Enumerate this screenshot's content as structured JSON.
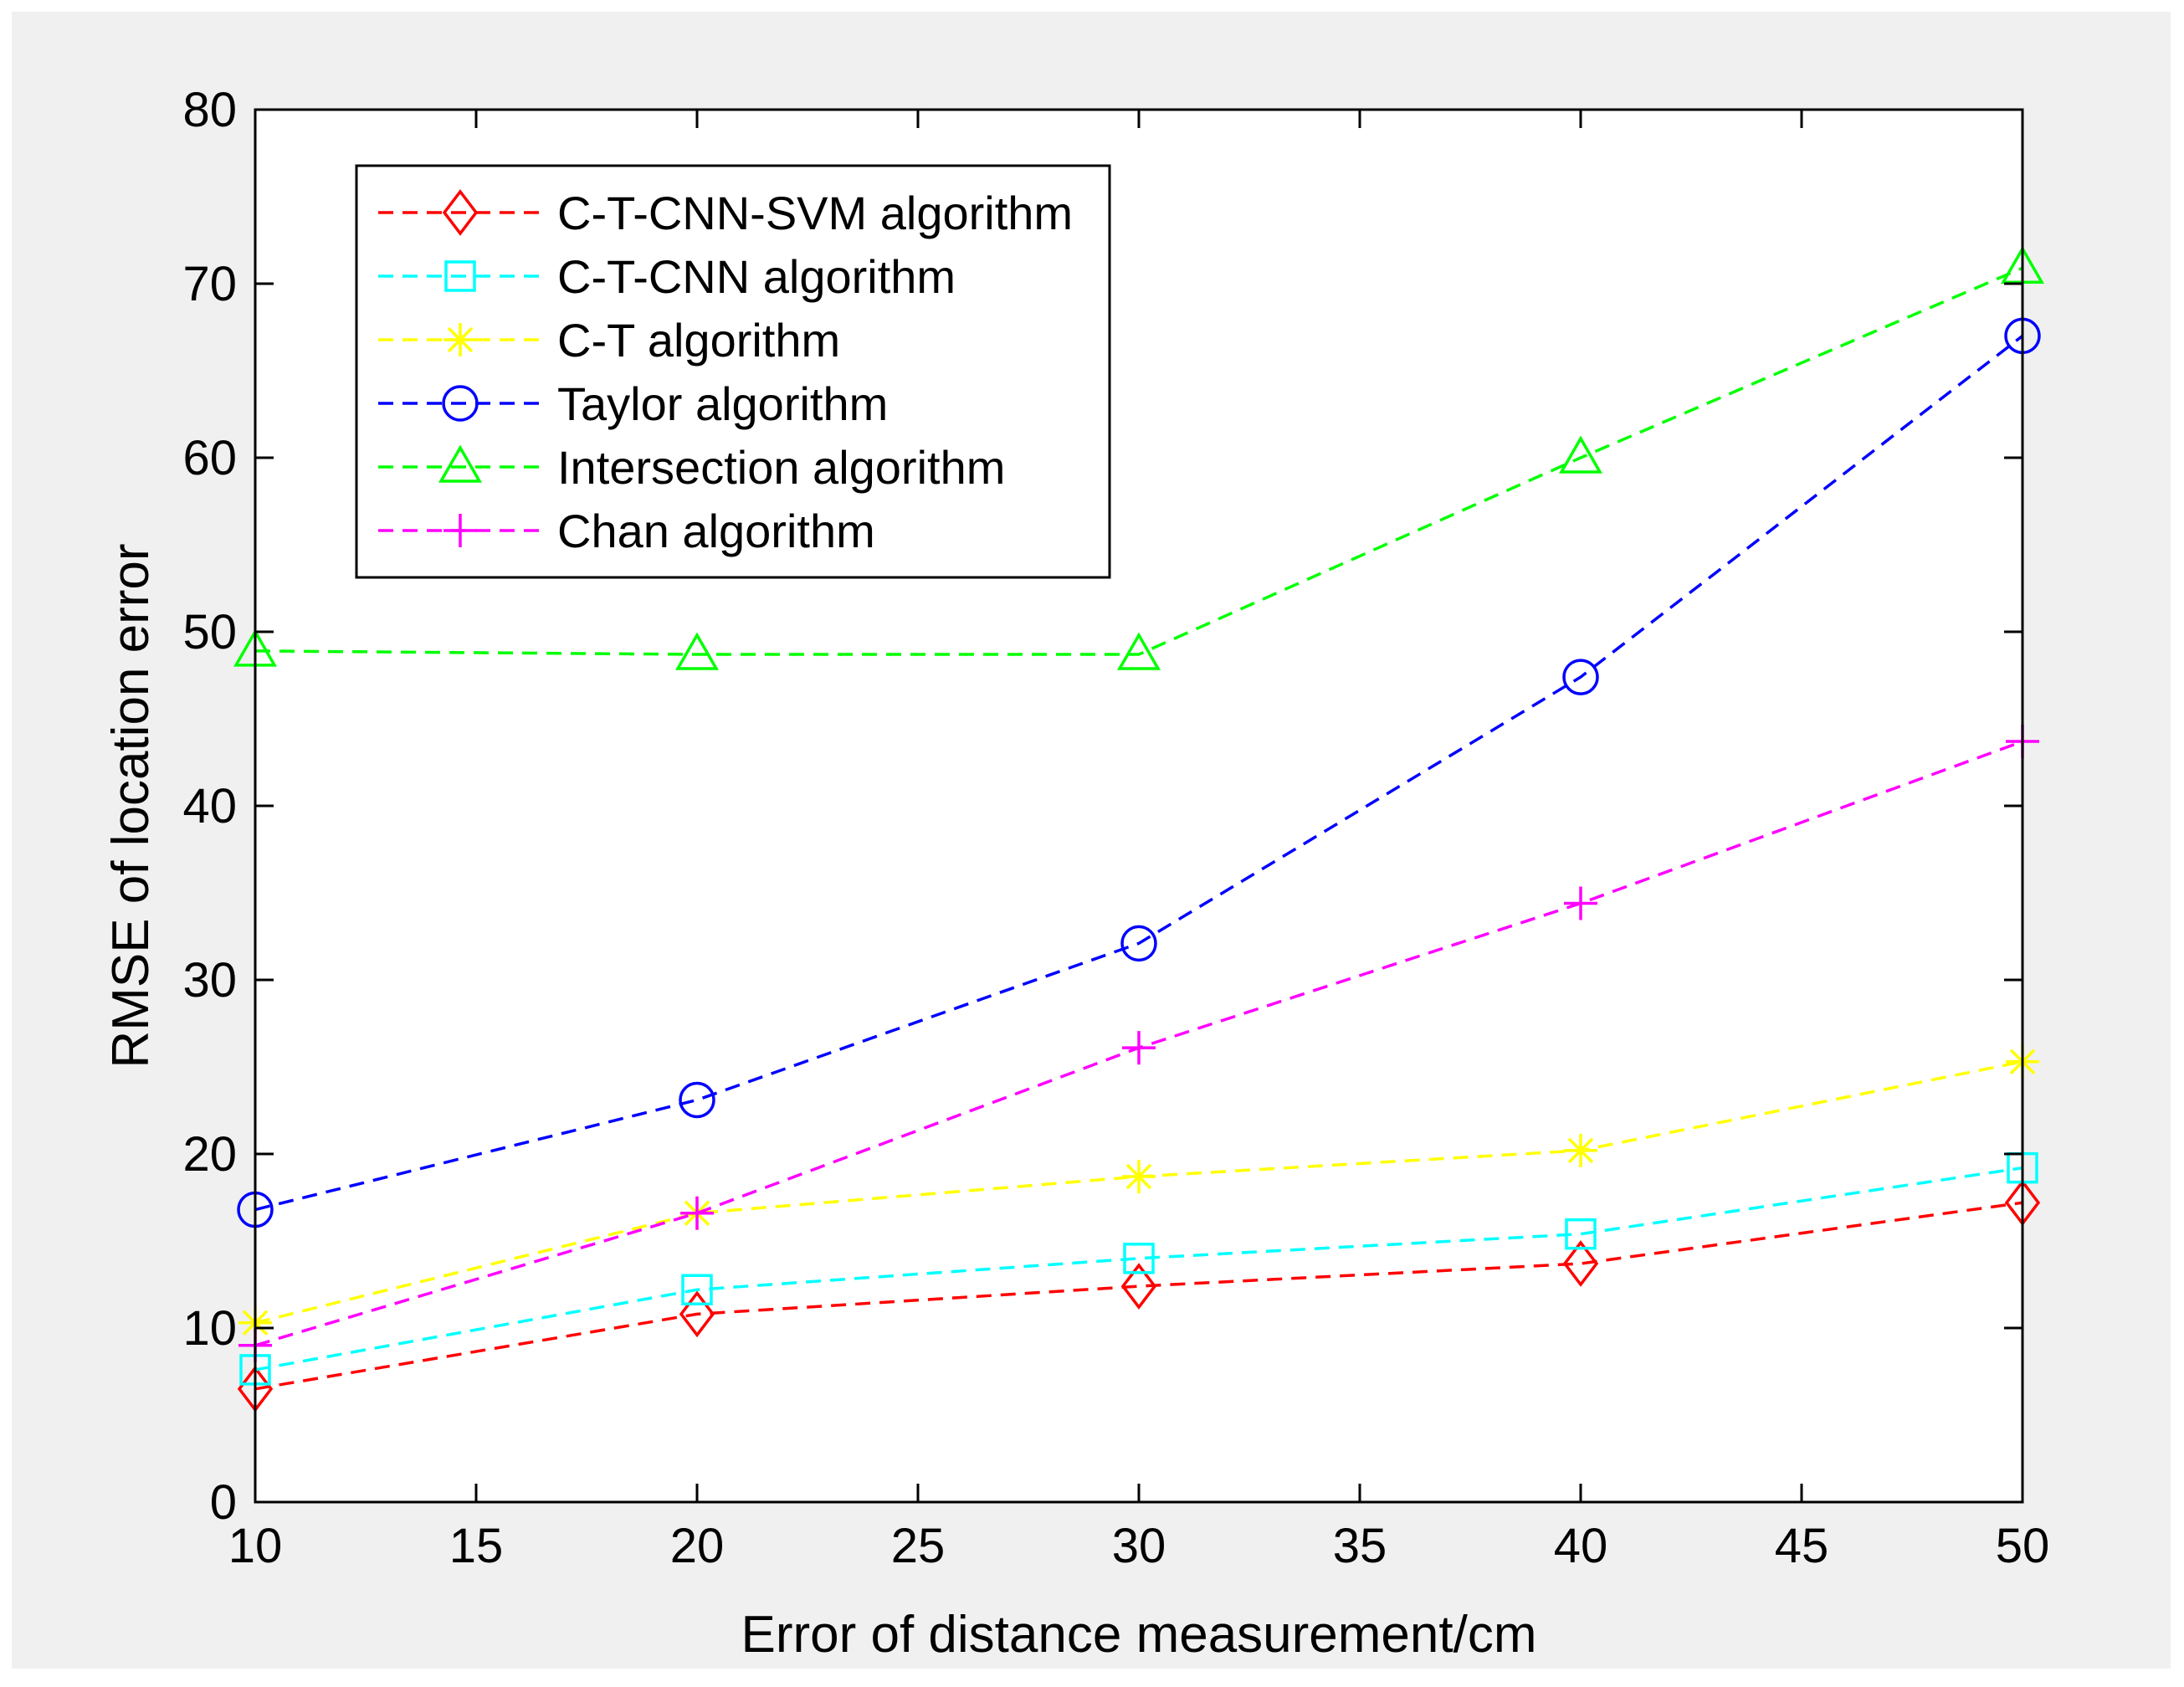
{
  "chart_data": {
    "type": "line",
    "title": "",
    "xlabel": "Error of distance measurement/cm",
    "ylabel": "RMSE of location error",
    "xlim": [
      10,
      50
    ],
    "ylim": [
      0,
      80
    ],
    "xticks": [
      10,
      15,
      20,
      25,
      30,
      35,
      40,
      45,
      50
    ],
    "yticks": [
      0,
      10,
      20,
      30,
      40,
      50,
      60,
      70,
      80
    ],
    "grid": false,
    "legend_position": "top-left",
    "x": [
      10,
      20,
      30,
      40,
      50
    ],
    "series": [
      {
        "name": "C-T-CNN-SVM algorithm",
        "color": "#ff0000",
        "marker": "diamond",
        "values": [
          6.5,
          10.8,
          12.4,
          13.7,
          17.2
        ]
      },
      {
        "name": "C-T-CNN algorithm",
        "color": "#00ffff",
        "marker": "square",
        "values": [
          7.6,
          12.2,
          14.0,
          15.4,
          19.2
        ]
      },
      {
        "name": "C-T algorithm",
        "color": "#ffff00",
        "marker": "asterisk",
        "values": [
          10.3,
          16.6,
          18.7,
          20.2,
          25.3
        ]
      },
      {
        "name": "Taylor algorithm",
        "color": "#0000ff",
        "marker": "circle",
        "values": [
          16.8,
          23.1,
          32.1,
          47.4,
          67.0
        ]
      },
      {
        "name": "Intersection algorithm",
        "color": "#00ff00",
        "marker": "triangle",
        "values": [
          48.9,
          48.7,
          48.7,
          60.0,
          70.9
        ]
      },
      {
        "name": "Chan algorithm",
        "color": "#ff00ff",
        "marker": "plus",
        "values": [
          9.0,
          16.6,
          26.1,
          34.4,
          43.7
        ]
      }
    ]
  }
}
